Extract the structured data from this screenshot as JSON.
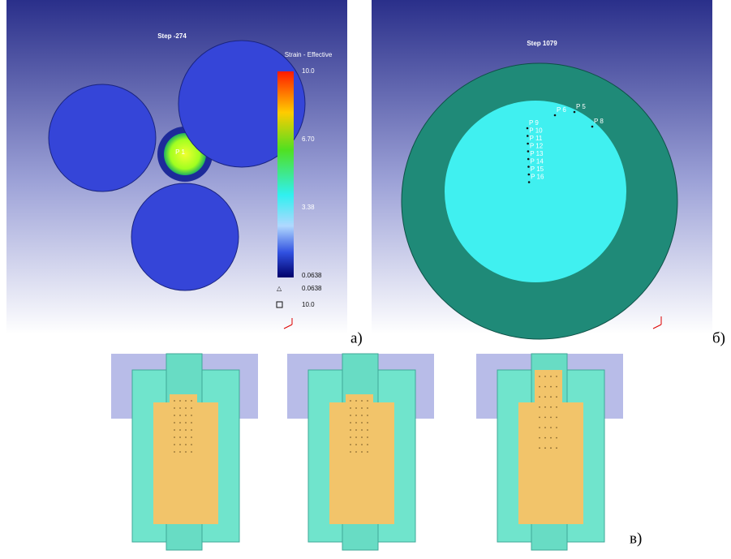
{
  "panel_a": {
    "title": "Step -274",
    "legend_title": "Strain - Effective",
    "legend_ticks": [
      "10.0",
      "6.70",
      "3.38",
      "0.0638"
    ],
    "min_label": "0.0638",
    "max_label": "10.0",
    "point_label": "P 1",
    "caption": "а)"
  },
  "panel_b": {
    "title": "Step 1079",
    "points": [
      "P 6",
      "P 5",
      "P 8",
      "P 9",
      "P 10",
      "P 11",
      "P 12",
      "P 13",
      "P 14",
      "P 15",
      "P 16"
    ],
    "caption": "б)"
  },
  "panel_c": {
    "caption": "в)"
  }
}
